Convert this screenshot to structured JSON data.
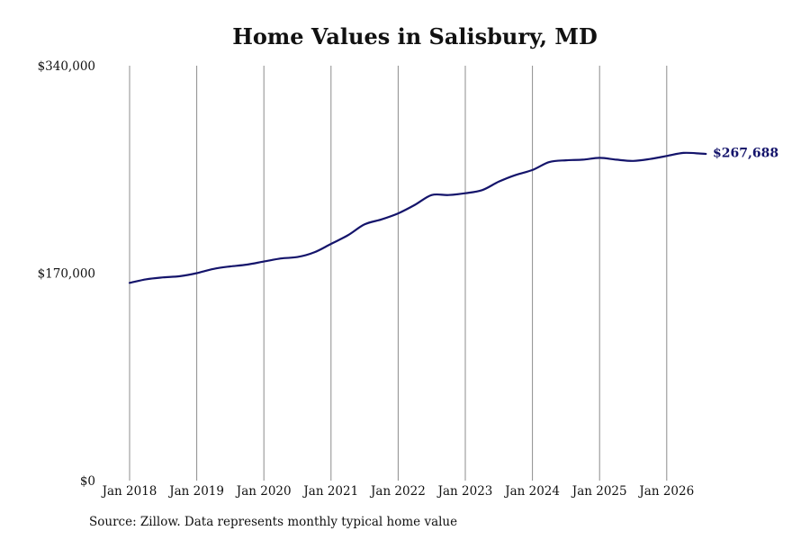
{
  "colors": {
    "line": "#14146b",
    "grid": "#8c8c8c",
    "text": "#111111"
  },
  "source_note": "Source: Zillow. Data represents monthly typical home value",
  "chart_data": {
    "type": "line",
    "title": "Home Values in Salisbury, MD",
    "xlabel": "",
    "ylabel": "",
    "x_tick_labels": [
      "Jan 2018",
      "Jan 2019",
      "Jan 2020",
      "Jan 2021",
      "Jan 2022",
      "Jan 2023",
      "Jan 2024",
      "Jan 2025",
      "Jan 2026"
    ],
    "y_tick_labels": [
      "$0",
      "$170,000",
      "$340,000"
    ],
    "y_ticks": [
      0,
      170000,
      340000
    ],
    "ylim": [
      0,
      340000
    ],
    "xlim": [
      "2018-01",
      "2026-08"
    ],
    "grid": "vertical",
    "end_label": "$267,688",
    "series": [
      {
        "x": [
          "2018-01",
          "2018-04",
          "2018-07",
          "2018-10",
          "2019-01",
          "2019-04",
          "2019-07",
          "2019-10",
          "2020-01",
          "2020-04",
          "2020-07",
          "2020-10",
          "2021-01",
          "2021-04",
          "2021-07",
          "2021-10",
          "2022-01",
          "2022-04",
          "2022-07",
          "2022-10",
          "2023-01",
          "2023-04",
          "2023-07",
          "2023-10",
          "2024-01",
          "2024-04",
          "2024-07",
          "2024-10",
          "2025-01",
          "2025-04",
          "2025-07",
          "2025-10",
          "2026-01",
          "2026-04",
          "2026-07",
          "2026-08"
        ],
        "values": [
          162000,
          165000,
          166500,
          167500,
          170000,
          173500,
          175500,
          177000,
          179500,
          182000,
          183200,
          187000,
          194000,
          201000,
          210000,
          214000,
          219000,
          226000,
          234000,
          234000,
          235500,
          238000,
          245000,
          250500,
          254500,
          261000,
          262500,
          263000,
          264500,
          263000,
          262000,
          263500,
          266000,
          268500,
          268000,
          267688
        ]
      }
    ]
  }
}
